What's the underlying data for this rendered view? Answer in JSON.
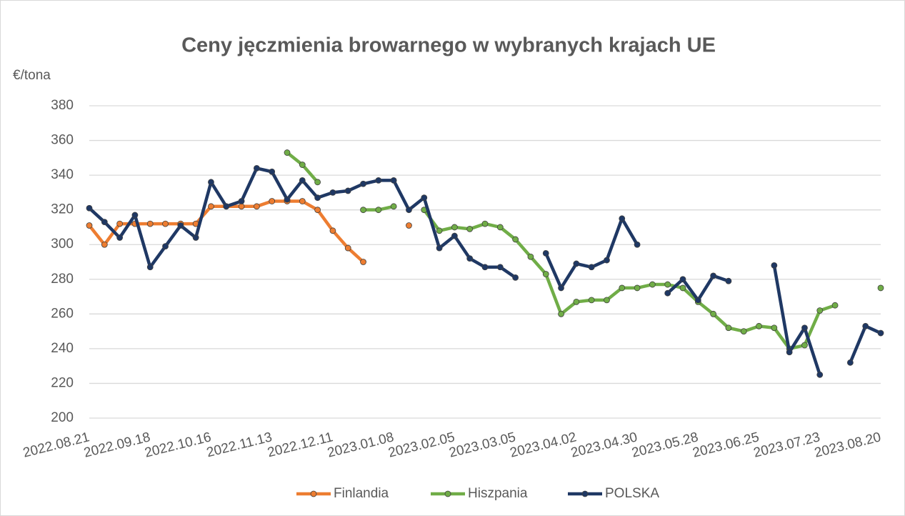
{
  "chart_data": {
    "type": "line",
    "title": "Ceny jęczmienia browarnego w wybranych krajach  UE",
    "y_label": "€/tona",
    "categories": [
      "2022.08.21",
      null,
      null,
      null,
      "2022.09.18",
      null,
      null,
      null,
      "2022.10.16",
      null,
      null,
      null,
      "2022.11.13",
      null,
      null,
      null,
      "2022.12.11",
      null,
      null,
      null,
      "2023.01.08",
      null,
      null,
      null,
      "2023.02.05",
      null,
      null,
      null,
      "2023.03.05",
      null,
      null,
      null,
      "2023.04.02",
      null,
      null,
      null,
      "2023.04.30",
      null,
      null,
      null,
      "2023.05.28",
      null,
      null,
      null,
      "2023.06.25",
      null,
      null,
      null,
      "2023.07.23",
      null,
      null,
      null,
      "2023.08.20"
    ],
    "series": [
      {
        "name": "Finlandia",
        "color": "#ed7d31",
        "values": [
          311,
          300,
          312,
          312,
          312,
          312,
          312,
          312,
          322,
          322,
          322,
          322,
          325,
          325,
          325,
          320,
          308,
          298,
          290,
          null,
          null,
          311,
          null,
          null,
          null,
          null,
          null,
          null,
          null,
          null,
          null,
          null,
          null,
          null,
          null,
          null,
          null,
          null,
          null,
          null,
          null,
          null,
          null,
          null,
          null,
          null,
          null,
          null,
          null,
          null,
          null,
          null,
          null
        ]
      },
      {
        "name": "Hiszpania",
        "color": "#70ad47",
        "values": [
          null,
          null,
          null,
          null,
          null,
          null,
          null,
          null,
          null,
          null,
          null,
          null,
          null,
          353,
          346,
          336,
          null,
          null,
          320,
          320,
          322,
          null,
          320,
          308,
          310,
          309,
          312,
          310,
          303,
          293,
          283,
          260,
          267,
          268,
          268,
          275,
          275,
          277,
          277,
          275,
          267,
          260,
          252,
          250,
          253,
          252,
          240,
          242,
          262,
          265,
          null,
          null,
          275
        ]
      },
      {
        "name": "POLSKA",
        "color": "#1f3864",
        "values": [
          321,
          313,
          304,
          317,
          287,
          299,
          311,
          304,
          336,
          322,
          325,
          344,
          342,
          326,
          337,
          327,
          330,
          331,
          335,
          337,
          337,
          320,
          327,
          298,
          305,
          292,
          287,
          287,
          281,
          null,
          295,
          275,
          289,
          287,
          291,
          315,
          300,
          null,
          272,
          280,
          268,
          282,
          279,
          null,
          null,
          288,
          238,
          252,
          225,
          null,
          232,
          253,
          249
        ]
      }
    ],
    "ylim": [
      200,
      380
    ],
    "yticks": [
      200,
      220,
      240,
      260,
      280,
      300,
      320,
      340,
      360,
      380
    ],
    "grid": true,
    "legend": "bottom"
  }
}
